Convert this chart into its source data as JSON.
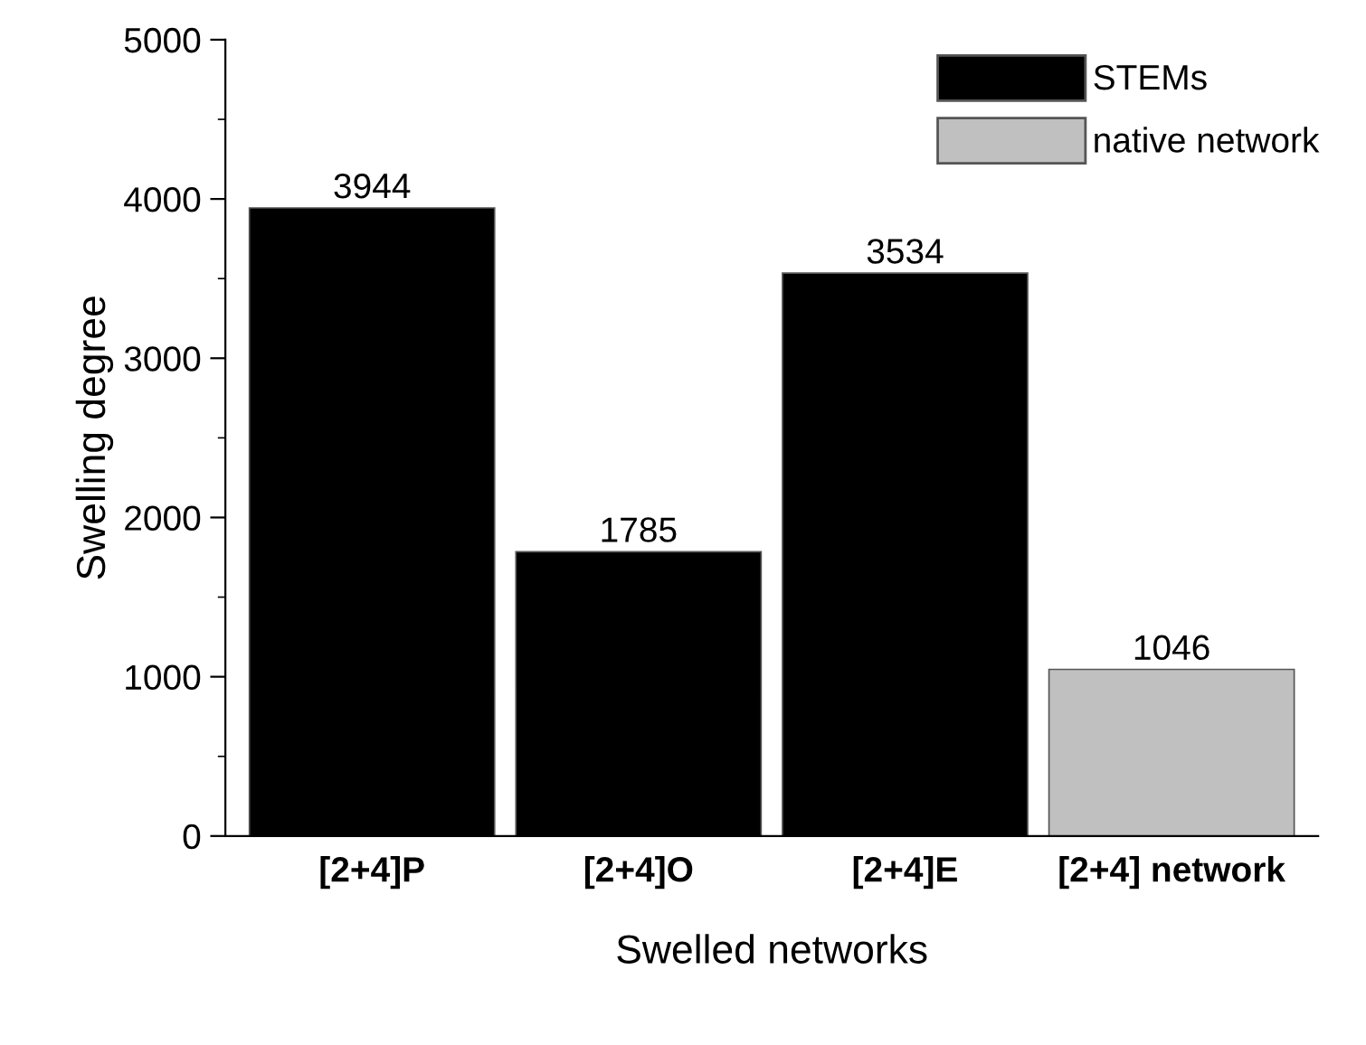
{
  "chart_data": {
    "type": "bar",
    "xlabel": "Swelled networks",
    "ylabel": "Swelling degree",
    "categories": [
      "[2+4]P",
      "[2+4]O",
      "[2+4]E",
      "[2+4] network"
    ],
    "series": [
      {
        "name": "STEMs",
        "color": "#000000",
        "values": [
          3944,
          1785,
          3534,
          null
        ]
      },
      {
        "name": "native network",
        "color": "#c0c0c0",
        "values": [
          null,
          null,
          null,
          1046
        ]
      }
    ],
    "ylim": [
      0,
      5000
    ],
    "yticks": [
      0,
      1000,
      2000,
      3000,
      4000,
      5000
    ],
    "data_labels": true,
    "legend": "top right",
    "grid": false
  }
}
